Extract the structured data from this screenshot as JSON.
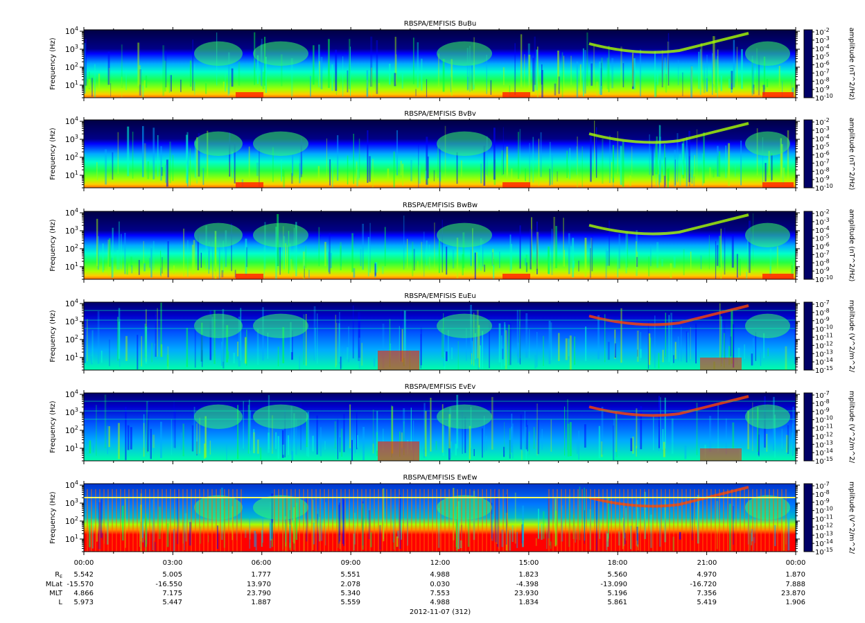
{
  "chart_data": [
    {
      "type": "heatmap",
      "title": "RBSPA/EMFISIS  BuBu",
      "ylabel": "Frequency (Hz)",
      "ylim": [
        2,
        12000
      ],
      "y_scale": "log",
      "y_ticks": [
        {
          "base": "10",
          "exp": "1"
        },
        {
          "base": "10",
          "exp": "2"
        },
        {
          "base": "10",
          "exp": "3"
        },
        {
          "base": "10",
          "exp": "4"
        }
      ],
      "colorbar_label": "amplitude (nT^2/Hz)",
      "colorbar_ticks": [
        {
          "base": "10",
          "exp": "-2"
        },
        {
          "base": "10",
          "exp": "-3"
        },
        {
          "base": "10",
          "exp": "-4"
        },
        {
          "base": "10",
          "exp": "-5"
        },
        {
          "base": "10",
          "exp": "-6"
        },
        {
          "base": "10",
          "exp": "-7"
        },
        {
          "base": "10",
          "exp": "-8"
        },
        {
          "base": "10",
          "exp": "-9"
        },
        {
          "base": "10",
          "exp": "-10"
        }
      ]
    },
    {
      "type": "heatmap",
      "title": "RBSPA/EMFISIS  BvBv",
      "ylabel": "Frequency (Hz)",
      "ylim": [
        2,
        12000
      ],
      "y_scale": "log",
      "y_ticks": [
        {
          "base": "10",
          "exp": "1"
        },
        {
          "base": "10",
          "exp": "2"
        },
        {
          "base": "10",
          "exp": "3"
        },
        {
          "base": "10",
          "exp": "4"
        }
      ],
      "colorbar_label": "amplitude (nT^2/Hz)",
      "colorbar_ticks": [
        {
          "base": "10",
          "exp": "-2"
        },
        {
          "base": "10",
          "exp": "-3"
        },
        {
          "base": "10",
          "exp": "-4"
        },
        {
          "base": "10",
          "exp": "-5"
        },
        {
          "base": "10",
          "exp": "-6"
        },
        {
          "base": "10",
          "exp": "-7"
        },
        {
          "base": "10",
          "exp": "-8"
        },
        {
          "base": "10",
          "exp": "-9"
        },
        {
          "base": "10",
          "exp": "-10"
        }
      ]
    },
    {
      "type": "heatmap",
      "title": "RBSPA/EMFISIS  BwBw",
      "ylabel": "Frequency (Hz)",
      "ylim": [
        2,
        12000
      ],
      "y_scale": "log",
      "y_ticks": [
        {
          "base": "10",
          "exp": "1"
        },
        {
          "base": "10",
          "exp": "2"
        },
        {
          "base": "10",
          "exp": "3"
        },
        {
          "base": "10",
          "exp": "4"
        }
      ],
      "colorbar_label": "amplitude (nT^2/Hz)",
      "colorbar_ticks": [
        {
          "base": "10",
          "exp": "-2"
        },
        {
          "base": "10",
          "exp": "-3"
        },
        {
          "base": "10",
          "exp": "-4"
        },
        {
          "base": "10",
          "exp": "-5"
        },
        {
          "base": "10",
          "exp": "-6"
        },
        {
          "base": "10",
          "exp": "-7"
        },
        {
          "base": "10",
          "exp": "-8"
        },
        {
          "base": "10",
          "exp": "-9"
        },
        {
          "base": "10",
          "exp": "-10"
        }
      ]
    },
    {
      "type": "heatmap",
      "title": "RBSPA/EMFISIS  EuEu",
      "ylabel": "Frequency (Hz)",
      "ylim": [
        2,
        12000
      ],
      "y_scale": "log",
      "y_ticks": [
        {
          "base": "10",
          "exp": "1"
        },
        {
          "base": "10",
          "exp": "2"
        },
        {
          "base": "10",
          "exp": "3"
        },
        {
          "base": "10",
          "exp": "4"
        }
      ],
      "colorbar_label": "mplitude (V^2/m^2/",
      "colorbar_ticks": [
        {
          "base": "10",
          "exp": "-7"
        },
        {
          "base": "10",
          "exp": "-8"
        },
        {
          "base": "10",
          "exp": "-9"
        },
        {
          "base": "10",
          "exp": "-10"
        },
        {
          "base": "10",
          "exp": "-11"
        },
        {
          "base": "10",
          "exp": "-12"
        },
        {
          "base": "10",
          "exp": "-13"
        },
        {
          "base": "10",
          "exp": "-14"
        },
        {
          "base": "10",
          "exp": "-15"
        }
      ]
    },
    {
      "type": "heatmap",
      "title": "RBSPA/EMFISIS  EvEv",
      "ylabel": "Frequency (Hz)",
      "ylim": [
        2,
        12000
      ],
      "y_scale": "log",
      "y_ticks": [
        {
          "base": "10",
          "exp": "1"
        },
        {
          "base": "10",
          "exp": "2"
        },
        {
          "base": "10",
          "exp": "3"
        },
        {
          "base": "10",
          "exp": "4"
        }
      ],
      "colorbar_label": "mplitude (V^2/m^2/",
      "colorbar_ticks": [
        {
          "base": "10",
          "exp": "-7"
        },
        {
          "base": "10",
          "exp": "-8"
        },
        {
          "base": "10",
          "exp": "-9"
        },
        {
          "base": "10",
          "exp": "-10"
        },
        {
          "base": "10",
          "exp": "-11"
        },
        {
          "base": "10",
          "exp": "-12"
        },
        {
          "base": "10",
          "exp": "-13"
        },
        {
          "base": "10",
          "exp": "-14"
        },
        {
          "base": "10",
          "exp": "-15"
        }
      ]
    },
    {
      "type": "heatmap",
      "title": "RBSPA/EMFISIS  EwEw",
      "ylabel": "Frequency (Hz)",
      "ylim": [
        2,
        12000
      ],
      "y_scale": "log",
      "y_ticks": [
        {
          "base": "10",
          "exp": "1"
        },
        {
          "base": "10",
          "exp": "2"
        },
        {
          "base": "10",
          "exp": "3"
        },
        {
          "base": "10",
          "exp": "4"
        }
      ],
      "colorbar_label": "mplitude (V^2/m^2/",
      "colorbar_ticks": [
        {
          "base": "10",
          "exp": "-7"
        },
        {
          "base": "10",
          "exp": "-8"
        },
        {
          "base": "10",
          "exp": "-9"
        },
        {
          "base": "10",
          "exp": "-10"
        },
        {
          "base": "10",
          "exp": "-11"
        },
        {
          "base": "10",
          "exp": "-12"
        },
        {
          "base": "10",
          "exp": "-13"
        },
        {
          "base": "10",
          "exp": "-14"
        },
        {
          "base": "10",
          "exp": "-15"
        }
      ]
    }
  ],
  "colormap": [
    "#000066",
    "#0000ff",
    "#00aaff",
    "#00ffcc",
    "#00ff44",
    "#aaff00",
    "#ffff00",
    "#ff8800",
    "#ff0000"
  ],
  "time_axis": {
    "ticks": [
      "00:00",
      "03:00",
      "06:00",
      "09:00",
      "12:00",
      "15:00",
      "18:00",
      "21:00",
      "00:00"
    ],
    "date_label": "2012-11-07 (312)"
  },
  "ephemeris": {
    "row_labels": [
      {
        "text": "R",
        "sub": "E"
      },
      {
        "text": "MLat",
        "sub": ""
      },
      {
        "text": "MLT",
        "sub": ""
      },
      {
        "text": "L",
        "sub": ""
      }
    ],
    "rows": [
      [
        "5.542",
        "5.005",
        "1.777",
        "5.551",
        "4.988",
        "1.823",
        "5.560",
        "4.970",
        "1.870"
      ],
      [
        "-15.570",
        "-16.550",
        "13.970",
        "2.078",
        "0.030",
        "-4.398",
        "-13.090",
        "-16.720",
        "7.888"
      ],
      [
        "4.866",
        "7.175",
        "23.790",
        "5.340",
        "7.553",
        "23.930",
        "5.196",
        "7.356",
        "23.870"
      ],
      [
        "5.973",
        "5.447",
        "1.887",
        "5.559",
        "4.988",
        "1.834",
        "5.861",
        "5.419",
        "1.906"
      ]
    ]
  }
}
